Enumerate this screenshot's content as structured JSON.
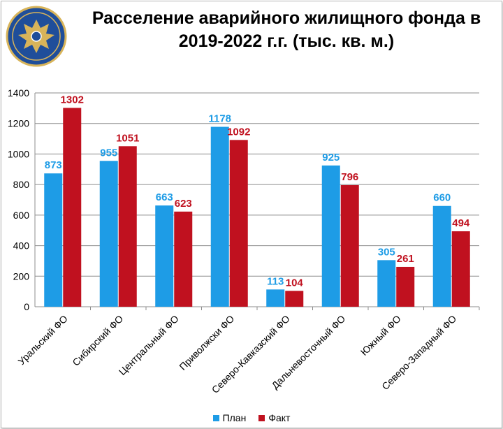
{
  "header": {
    "title_line1": "Расселение аварийного жилищного фонда в",
    "title_line2": "2019-2022 г.г. (тыс. кв. м.)"
  },
  "colors": {
    "plan": "#1E9CE6",
    "fact": "#C0111F",
    "emblem_bg": "#1F4E9A",
    "emblem_ring": "#D8B45A"
  },
  "icons": {
    "emblem": "ministry-eagle-emblem-icon"
  },
  "chart_data": {
    "type": "bar",
    "title": "Расселение аварийного жилищного фонда в 2019-2022 г.г. (тыс. кв. м.)",
    "categories": [
      "Уральский ФО",
      "Сибирский ФО",
      "Центральный ФО",
      "Приволжски ФО",
      "Северо-Кавказский ФО",
      "Дальневосточный ФО",
      "Южный ФО",
      "Северо-Западный ФО"
    ],
    "series": [
      {
        "name": "План",
        "values": [
          873,
          955,
          663,
          1178,
          113,
          925,
          305,
          660
        ]
      },
      {
        "name": "Факт",
        "values": [
          1302,
          1051,
          623,
          1092,
          104,
          796,
          261,
          494
        ]
      }
    ],
    "ylim": [
      0,
      1400
    ],
    "yticks": [
      0,
      200,
      400,
      600,
      800,
      1000,
      1200,
      1400
    ],
    "grid": true,
    "legend_position": "bottom",
    "xlabel": "",
    "ylabel": ""
  }
}
